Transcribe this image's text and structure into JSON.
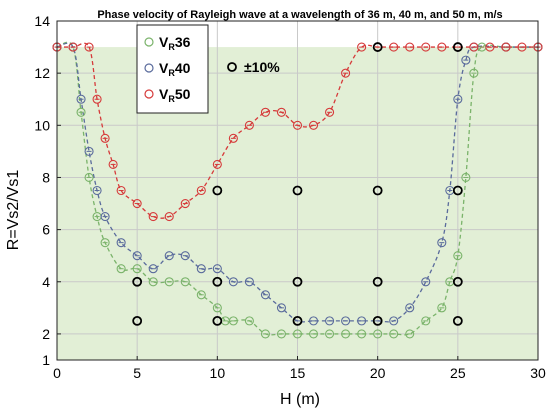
{
  "chart_data": {
    "type": "line",
    "title": "Phase velocity of Rayleigh wave at a wavelength of 36 m, 40 m, and 50 m, m/s",
    "xlabel": "H (m)",
    "ylabel": "R=Vs2/Vs1",
    "xlim": [
      0,
      30
    ],
    "ylim": [
      1,
      14
    ],
    "xticks": [
      "0",
      "5",
      "10",
      "15",
      "20",
      "25",
      "30"
    ],
    "yticks": [
      "1",
      "2",
      "4",
      "6",
      "8",
      "10",
      "12",
      "14"
    ],
    "grid": true,
    "background_fill": "#e2efd6",
    "legend_position": "top-left",
    "legend": [
      {
        "main": "V",
        "sub": "R",
        "suffix": "36",
        "color": "#7ab36a"
      },
      {
        "main": "V",
        "sub": "R",
        "suffix": "40",
        "color": "#5a6b9c"
      },
      {
        "main": "V",
        "sub": "R",
        "suffix": "50",
        "color": "#d63a3a"
      },
      {
        "main": "",
        "sub": "",
        "suffix": "±10%",
        "color": "#000000"
      }
    ],
    "series": [
      {
        "name": "VR36",
        "color": "#7ab36a",
        "points": [
          [
            0,
            13
          ],
          [
            1,
            13
          ],
          [
            1.5,
            10.5
          ],
          [
            2,
            8
          ],
          [
            2.5,
            6.5
          ],
          [
            3,
            5.5
          ],
          [
            4,
            4.5
          ],
          [
            5,
            4.5
          ],
          [
            6,
            4
          ],
          [
            7,
            4
          ],
          [
            8,
            4
          ],
          [
            9,
            3.5
          ],
          [
            10,
            3
          ],
          [
            10.5,
            2.5
          ],
          [
            11,
            2.5
          ],
          [
            12,
            2.5
          ],
          [
            13,
            2
          ],
          [
            14,
            2
          ],
          [
            15,
            2
          ],
          [
            16,
            2
          ],
          [
            17,
            2
          ],
          [
            18,
            2
          ],
          [
            19,
            2
          ],
          [
            20,
            2
          ],
          [
            21,
            2
          ],
          [
            22,
            2
          ],
          [
            23,
            2.5
          ],
          [
            24,
            3
          ],
          [
            24.5,
            4
          ],
          [
            25,
            5
          ],
          [
            25.5,
            8
          ],
          [
            26,
            12
          ],
          [
            26.5,
            13
          ],
          [
            28,
            13
          ],
          [
            30,
            13
          ]
        ]
      },
      {
        "name": "VR40",
        "color": "#5a6b9c",
        "points": [
          [
            0,
            13
          ],
          [
            1,
            13
          ],
          [
            1.5,
            11
          ],
          [
            2,
            9
          ],
          [
            2.5,
            7.5
          ],
          [
            3,
            6.5
          ],
          [
            4,
            5.5
          ],
          [
            5,
            5
          ],
          [
            6,
            4.5
          ],
          [
            7,
            5
          ],
          [
            8,
            5
          ],
          [
            9,
            4.5
          ],
          [
            10,
            4.5
          ],
          [
            11,
            4
          ],
          [
            12,
            4
          ],
          [
            13,
            3.5
          ],
          [
            14,
            3
          ],
          [
            15,
            2.5
          ],
          [
            16,
            2.5
          ],
          [
            17,
            2.5
          ],
          [
            18,
            2.5
          ],
          [
            19,
            2.5
          ],
          [
            20,
            2.5
          ],
          [
            21,
            2.5
          ],
          [
            22,
            3
          ],
          [
            23,
            4
          ],
          [
            24,
            5.5
          ],
          [
            24.5,
            7.5
          ],
          [
            25,
            11
          ],
          [
            25.5,
            12.5
          ],
          [
            26,
            13
          ],
          [
            28,
            13
          ],
          [
            30,
            13
          ]
        ]
      },
      {
        "name": "VR50",
        "color": "#d63a3a",
        "points": [
          [
            0,
            13
          ],
          [
            1,
            13
          ],
          [
            2,
            13
          ],
          [
            2.5,
            11
          ],
          [
            3,
            9.5
          ],
          [
            3.5,
            8.5
          ],
          [
            4,
            7.5
          ],
          [
            5,
            7
          ],
          [
            6,
            6.5
          ],
          [
            7,
            6.5
          ],
          [
            8,
            7
          ],
          [
            9,
            7.5
          ],
          [
            10,
            8.5
          ],
          [
            11,
            9.5
          ],
          [
            12,
            10
          ],
          [
            13,
            10.5
          ],
          [
            14,
            10.5
          ],
          [
            15,
            10
          ],
          [
            16,
            10
          ],
          [
            17,
            10.5
          ],
          [
            18,
            12
          ],
          [
            19,
            13
          ],
          [
            20,
            13
          ],
          [
            21,
            13
          ],
          [
            22,
            13
          ],
          [
            23,
            13
          ],
          [
            24,
            13
          ],
          [
            25,
            13
          ],
          [
            26,
            13
          ],
          [
            27,
            13
          ],
          [
            28,
            13
          ],
          [
            29,
            13
          ],
          [
            30,
            13
          ]
        ]
      },
      {
        "name": "±10%",
        "color": "#000000",
        "marker_only": true,
        "points": [
          [
            5,
            4
          ],
          [
            5,
            2.5
          ],
          [
            10,
            7.5
          ],
          [
            10,
            4
          ],
          [
            10,
            2.5
          ],
          [
            15,
            7.5
          ],
          [
            15,
            4
          ],
          [
            15,
            2.5
          ],
          [
            20,
            7.5
          ],
          [
            20,
            4
          ],
          [
            20,
            2.5
          ],
          [
            25,
            7.5
          ],
          [
            25,
            4
          ],
          [
            25,
            2.5
          ],
          [
            20,
            13
          ],
          [
            25,
            13
          ]
        ]
      }
    ]
  }
}
